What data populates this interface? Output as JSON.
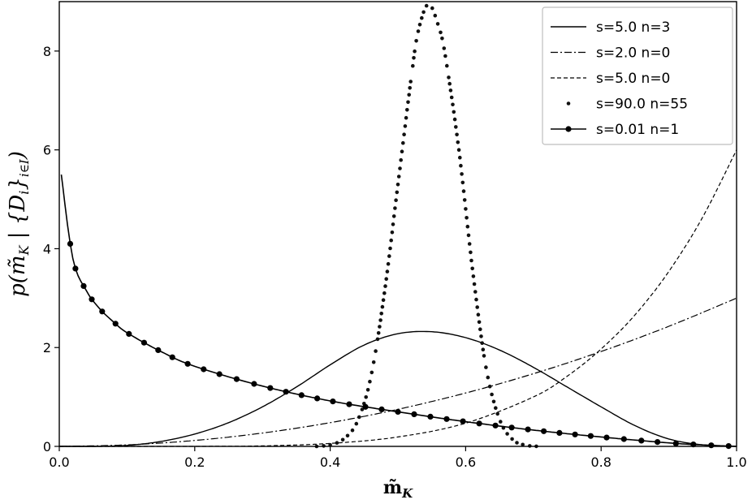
{
  "chart_data": {
    "type": "line",
    "xlabel": "m̃_K",
    "ylabel": "p(m̃_K | {D_i}_{i∈I})",
    "xlim": [
      0.0,
      1.0
    ],
    "ylim": [
      0,
      9
    ],
    "xticks": [
      "0.0",
      "0.2",
      "0.4",
      "0.6",
      "0.8",
      "1.0"
    ],
    "yticks": [
      "0",
      "2",
      "4",
      "6",
      "8"
    ],
    "grid": false,
    "legend_position": "top-right",
    "series": [
      {
        "name": "s=5.0  n=3",
        "style": "solid",
        "x": [
          0.0,
          0.05,
          0.1,
          0.15,
          0.2,
          0.25,
          0.3,
          0.35,
          0.4,
          0.45,
          0.5,
          0.55,
          0.6,
          0.65,
          0.7,
          0.75,
          0.8,
          0.85,
          0.9,
          0.95,
          1.0
        ],
        "y": [
          0.0,
          0.0,
          0.02,
          0.1,
          0.25,
          0.48,
          0.8,
          1.2,
          1.65,
          2.05,
          2.28,
          2.32,
          2.2,
          1.95,
          1.6,
          1.2,
          0.8,
          0.42,
          0.15,
          0.03,
          0.0
        ]
      },
      {
        "name": "s=2.0  n=0",
        "style": "dashdot",
        "x": [
          0.0,
          0.1,
          0.2,
          0.3,
          0.4,
          0.5,
          0.6,
          0.7,
          0.8,
          0.9,
          1.0
        ],
        "y": [
          0.0,
          0.03,
          0.12,
          0.27,
          0.48,
          0.75,
          1.08,
          1.47,
          1.92,
          2.43,
          3.0
        ]
      },
      {
        "name": "s=5.0  n=0",
        "style": "dashed",
        "x": [
          0.0,
          0.1,
          0.2,
          0.3,
          0.4,
          0.5,
          0.6,
          0.7,
          0.75,
          0.8,
          0.85,
          0.9,
          0.95,
          1.0
        ],
        "y": [
          0.0,
          0.0,
          0.0,
          0.01,
          0.06,
          0.19,
          0.47,
          1.0,
          1.42,
          1.97,
          2.66,
          3.54,
          4.64,
          6.0
        ]
      },
      {
        "name": "s=90.0  n=55",
        "style": "dotted",
        "x": [
          0.38,
          0.4,
          0.42,
          0.44,
          0.46,
          0.48,
          0.5,
          0.52,
          0.53,
          0.545,
          0.56,
          0.57,
          0.59,
          0.61,
          0.63,
          0.65,
          0.67,
          0.69,
          0.71
        ],
        "y": [
          0.0,
          0.03,
          0.15,
          0.5,
          1.4,
          3.1,
          5.3,
          7.5,
          8.4,
          8.95,
          8.5,
          7.9,
          6.0,
          3.6,
          1.6,
          0.55,
          0.13,
          0.02,
          0.0
        ]
      },
      {
        "name": "s=0.01  n=1",
        "style": "solid-marker",
        "x": [
          0.003,
          0.02,
          0.04,
          0.06,
          0.08,
          0.1,
          0.15,
          0.2,
          0.3,
          0.4,
          0.5,
          0.6,
          0.7,
          0.8,
          0.9,
          0.95,
          1.0
        ],
        "y": [
          5.5,
          3.8,
          3.15,
          2.78,
          2.52,
          2.3,
          1.92,
          1.62,
          1.22,
          0.92,
          0.7,
          0.5,
          0.33,
          0.19,
          0.07,
          0.03,
          0.0
        ]
      }
    ]
  }
}
